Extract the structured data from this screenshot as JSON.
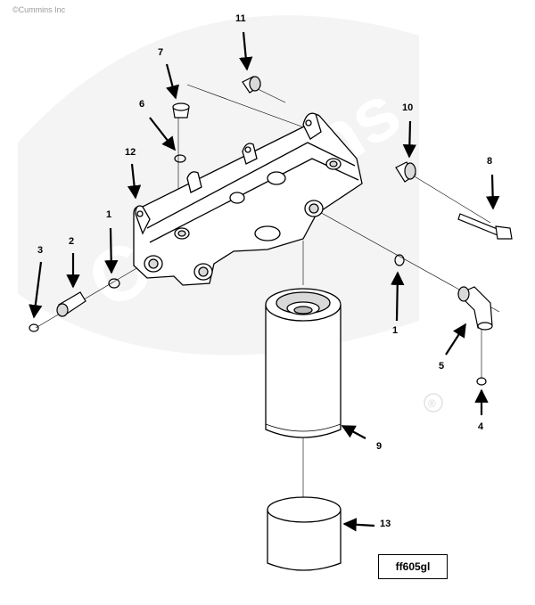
{
  "copyright": "©Cummins Inc",
  "watermark": {
    "text": "Cummins",
    "mark": "®",
    "color": "#e9e9e9"
  },
  "drawing_code": "ff605gl",
  "colors": {
    "line": "#000000",
    "part_fill": "#ffffff",
    "shade": "#d9d9d9"
  },
  "callouts": [
    {
      "label": "11",
      "part": "plug-11"
    },
    {
      "label": "7",
      "part": "plug-7"
    },
    {
      "label": "6",
      "part": "o-ring-6"
    },
    {
      "label": "10",
      "part": "plug-10"
    },
    {
      "label": "12",
      "part": "filter-head-12"
    },
    {
      "label": "8",
      "part": "screw-8"
    },
    {
      "label": "1",
      "part": "o-ring-1-left"
    },
    {
      "label": "2",
      "part": "fitting-2"
    },
    {
      "label": "3",
      "part": "o-ring-3"
    },
    {
      "label": "1",
      "part": "o-ring-1-right"
    },
    {
      "label": "5",
      "part": "elbow-5"
    },
    {
      "label": "4",
      "part": "o-ring-4"
    },
    {
      "label": "9",
      "part": "filter-9"
    },
    {
      "label": "13",
      "part": "cover-13"
    }
  ]
}
